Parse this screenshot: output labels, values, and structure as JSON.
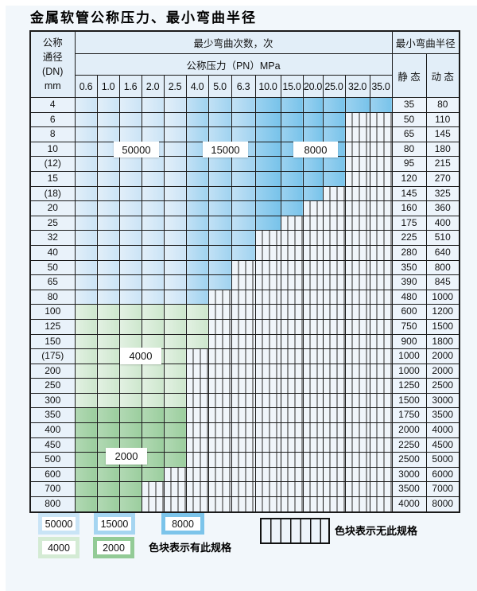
{
  "title": "金属软管公称压力、最小弯曲半径",
  "table": {
    "header": {
      "dn_label_lines": [
        "公称",
        "通径",
        "(DN)",
        "mm"
      ],
      "bend_cycles_label": "最少弯曲次数，次",
      "pressure_label": "公称压力（PN）MPa",
      "radius_label": "最小弯曲半径",
      "static_label": "静 态",
      "dynamic_label": "动 态",
      "pressure_columns": [
        "0.6",
        "1.0",
        "1.6",
        "2.0",
        "2.5",
        "4.0",
        "5.0",
        "6.3",
        "10.0",
        "15.0",
        "20.0",
        "25.0",
        "32.0",
        "35.0"
      ]
    },
    "rows": [
      {
        "dn": "4",
        "colored": 14,
        "family": "blue",
        "static": "35",
        "dynamic": "80"
      },
      {
        "dn": "6",
        "colored": 12,
        "family": "blue",
        "static": "50",
        "dynamic": "110"
      },
      {
        "dn": "8",
        "colored": 12,
        "family": "blue",
        "static": "65",
        "dynamic": "145"
      },
      {
        "dn": "10",
        "colored": 12,
        "family": "blue",
        "static": "80",
        "dynamic": "180"
      },
      {
        "dn": "(12)",
        "colored": 12,
        "family": "blue",
        "static": "95",
        "dynamic": "215"
      },
      {
        "dn": "15",
        "colored": 12,
        "family": "blue",
        "static": "120",
        "dynamic": "270"
      },
      {
        "dn": "(18)",
        "colored": 11,
        "family": "blue",
        "static": "145",
        "dynamic": "325"
      },
      {
        "dn": "20",
        "colored": 10,
        "family": "blue",
        "static": "160",
        "dynamic": "360"
      },
      {
        "dn": "25",
        "colored": 9,
        "family": "blue",
        "static": "175",
        "dynamic": "400"
      },
      {
        "dn": "32",
        "colored": 8,
        "family": "blue",
        "static": "225",
        "dynamic": "510"
      },
      {
        "dn": "40",
        "colored": 8,
        "family": "blue",
        "static": "280",
        "dynamic": "640"
      },
      {
        "dn": "50",
        "colored": 7,
        "family": "blue",
        "static": "350",
        "dynamic": "800"
      },
      {
        "dn": "65",
        "colored": 7,
        "family": "blue",
        "static": "390",
        "dynamic": "845"
      },
      {
        "dn": "80",
        "colored": 6,
        "family": "blue",
        "static": "480",
        "dynamic": "1000"
      },
      {
        "dn": "100",
        "colored": 6,
        "family": "green_light",
        "static": "600",
        "dynamic": "1200"
      },
      {
        "dn": "125",
        "colored": 6,
        "family": "green_light",
        "static": "750",
        "dynamic": "1500"
      },
      {
        "dn": "150",
        "colored": 6,
        "family": "green_light",
        "static": "900",
        "dynamic": "1800"
      },
      {
        "dn": "(175)",
        "colored": 5,
        "family": "green_light",
        "static": "1000",
        "dynamic": "2000"
      },
      {
        "dn": "200",
        "colored": 5,
        "family": "green_light",
        "static": "1000",
        "dynamic": "2000"
      },
      {
        "dn": "250",
        "colored": 5,
        "family": "green_light",
        "static": "1250",
        "dynamic": "2500"
      },
      {
        "dn": "300",
        "colored": 5,
        "family": "green_light",
        "static": "1500",
        "dynamic": "3000"
      },
      {
        "dn": "350",
        "colored": 5,
        "family": "green_dark",
        "static": "1750",
        "dynamic": "3500"
      },
      {
        "dn": "400",
        "colored": 5,
        "family": "green_dark",
        "static": "2000",
        "dynamic": "4000"
      },
      {
        "dn": "450",
        "colored": 5,
        "family": "green_dark",
        "static": "2250",
        "dynamic": "4500"
      },
      {
        "dn": "500",
        "colored": 5,
        "family": "green_dark",
        "static": "2500",
        "dynamic": "5000"
      },
      {
        "dn": "600",
        "colored": 4,
        "family": "green_dark",
        "static": "3000",
        "dynamic": "6000"
      },
      {
        "dn": "700",
        "colored": 3,
        "family": "green_dark",
        "static": "3500",
        "dynamic": "7000"
      },
      {
        "dn": "800",
        "colored": 3,
        "family": "green_dark",
        "static": "4000",
        "dynamic": "8000"
      }
    ]
  },
  "overlays": {
    "l50000": "50000",
    "l15000": "15000",
    "l8000": "8000",
    "l4000": "4000",
    "l2000": "2000"
  },
  "legend": {
    "items": [
      {
        "label": "50000",
        "color": "#c9e4f6"
      },
      {
        "label": "15000",
        "color": "#a5d5f1"
      },
      {
        "label": "8000",
        "color": "#7cc4ea"
      },
      {
        "label": "4000",
        "color": "#d4ebd4"
      },
      {
        "label": "2000",
        "color": "#93cb96"
      }
    ],
    "has_spec_note": "色块表示有此规格",
    "no_spec_note": "色块表示无此规格"
  },
  "colors": {
    "blue_light": "#d8eaf8",
    "blue_medium": "#b0d9f3",
    "blue_dark": "#83c7ec",
    "green_light": "#d9edd9",
    "green_dark": "#a3d2a6",
    "header_bg": "#e2eef8",
    "stripe_bg": "#f0f5fa",
    "border": "#1b1b1b"
  },
  "chart_data": {
    "type": "table",
    "title": "金属软管公称压力、最小弯曲半径",
    "xlabel": "公称压力（PN）MPa",
    "ylabel": "公称通径(DN) mm",
    "pn_columns_mpa": [
      0.6,
      1.0,
      1.6,
      2.0,
      2.5,
      4.0,
      5.0,
      6.3,
      10.0,
      15.0,
      20.0,
      25.0,
      32.0,
      35.0
    ],
    "legend_position": "bottom",
    "bend_cycle_color_codes": {
      "50000": "light blue",
      "15000": "medium blue",
      "8000": "dark blue",
      "4000": "light green",
      "2000": "dark green",
      "striped": "无此规格"
    },
    "rows": [
      {
        "dn": "4",
        "max_pn": 35.0,
        "color_family": "blue",
        "min_bend_radius_static": 35,
        "min_bend_radius_dynamic": 80
      },
      {
        "dn": "6",
        "max_pn": 25.0,
        "color_family": "blue",
        "min_bend_radius_static": 50,
        "min_bend_radius_dynamic": 110
      },
      {
        "dn": "8",
        "max_pn": 25.0,
        "color_family": "blue",
        "min_bend_radius_static": 65,
        "min_bend_radius_dynamic": 145
      },
      {
        "dn": "10",
        "max_pn": 25.0,
        "color_family": "blue",
        "min_bend_radius_static": 80,
        "min_bend_radius_dynamic": 180
      },
      {
        "dn": "(12)",
        "max_pn": 25.0,
        "color_family": "blue",
        "min_bend_radius_static": 95,
        "min_bend_radius_dynamic": 215
      },
      {
        "dn": "15",
        "max_pn": 25.0,
        "color_family": "blue",
        "min_bend_radius_static": 120,
        "min_bend_radius_dynamic": 270
      },
      {
        "dn": "(18)",
        "max_pn": 20.0,
        "color_family": "blue",
        "min_bend_radius_static": 145,
        "min_bend_radius_dynamic": 325
      },
      {
        "dn": "20",
        "max_pn": 15.0,
        "color_family": "blue",
        "min_bend_radius_static": 160,
        "min_bend_radius_dynamic": 360
      },
      {
        "dn": "25",
        "max_pn": 10.0,
        "color_family": "blue",
        "min_bend_radius_static": 175,
        "min_bend_radius_dynamic": 400
      },
      {
        "dn": "32",
        "max_pn": 6.3,
        "color_family": "blue",
        "min_bend_radius_static": 225,
        "min_bend_radius_dynamic": 510
      },
      {
        "dn": "40",
        "max_pn": 6.3,
        "color_family": "blue",
        "min_bend_radius_static": 280,
        "min_bend_radius_dynamic": 640
      },
      {
        "dn": "50",
        "max_pn": 5.0,
        "color_family": "blue",
        "min_bend_radius_static": 350,
        "min_bend_radius_dynamic": 800
      },
      {
        "dn": "65",
        "max_pn": 5.0,
        "color_family": "blue",
        "min_bend_radius_static": 390,
        "min_bend_radius_dynamic": 845
      },
      {
        "dn": "80",
        "max_pn": 4.0,
        "color_family": "blue",
        "min_bend_radius_static": 480,
        "min_bend_radius_dynamic": 1000
      },
      {
        "dn": "100",
        "max_pn": 4.0,
        "color_family": "green_light",
        "min_bend_radius_static": 600,
        "min_bend_radius_dynamic": 1200
      },
      {
        "dn": "125",
        "max_pn": 4.0,
        "color_family": "green_light",
        "min_bend_radius_static": 750,
        "min_bend_radius_dynamic": 1500
      },
      {
        "dn": "150",
        "max_pn": 4.0,
        "color_family": "green_light",
        "min_bend_radius_static": 900,
        "min_bend_radius_dynamic": 1800
      },
      {
        "dn": "(175)",
        "max_pn": 2.5,
        "color_family": "green_light",
        "min_bend_radius_static": 1000,
        "min_bend_radius_dynamic": 2000
      },
      {
        "dn": "200",
        "max_pn": 2.5,
        "color_family": "green_light",
        "min_bend_radius_static": 1000,
        "min_bend_radius_dynamic": 2000
      },
      {
        "dn": "250",
        "max_pn": 2.5,
        "color_family": "green_light",
        "min_bend_radius_static": 1250,
        "min_bend_radius_dynamic": 2500
      },
      {
        "dn": "300",
        "max_pn": 2.5,
        "color_family": "green_light",
        "min_bend_radius_static": 1500,
        "min_bend_radius_dynamic": 3000
      },
      {
        "dn": "350",
        "max_pn": 2.5,
        "color_family": "green_dark",
        "min_bend_radius_static": 1750,
        "min_bend_radius_dynamic": 3500
      },
      {
        "dn": "400",
        "max_pn": 2.5,
        "color_family": "green_dark",
        "min_bend_radius_static": 2000,
        "min_bend_radius_dynamic": 4000
      },
      {
        "dn": "450",
        "max_pn": 2.5,
        "color_family": "green_dark",
        "min_bend_radius_static": 2250,
        "min_bend_radius_dynamic": 4500
      },
      {
        "dn": "500",
        "max_pn": 2.5,
        "color_family": "green_dark",
        "min_bend_radius_static": 2500,
        "min_bend_radius_dynamic": 5000
      },
      {
        "dn": "600",
        "max_pn": 2.0,
        "color_family": "green_dark",
        "min_bend_radius_static": 3000,
        "min_bend_radius_dynamic": 6000
      },
      {
        "dn": "700",
        "max_pn": 1.6,
        "color_family": "green_dark",
        "min_bend_radius_static": 3500,
        "min_bend_radius_dynamic": 7000
      },
      {
        "dn": "800",
        "max_pn": 1.6,
        "color_family": "green_dark",
        "min_bend_radius_static": 4000,
        "min_bend_radius_dynamic": 8000
      }
    ]
  }
}
